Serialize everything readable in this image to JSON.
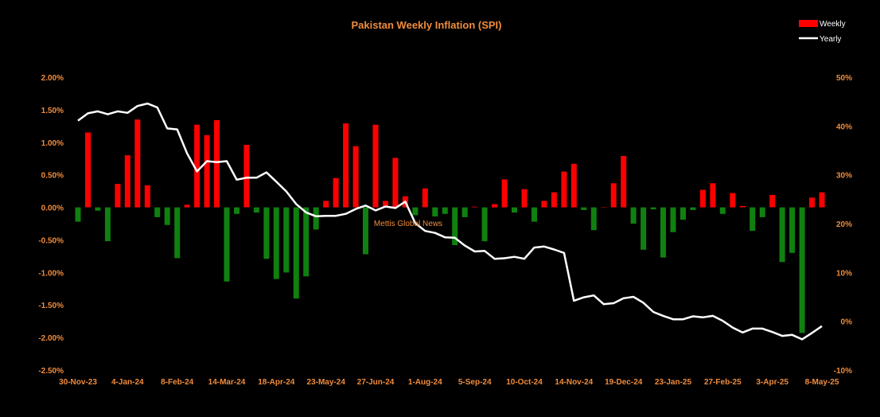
{
  "chart_data": {
    "type": "bar",
    "title": "Pakistan Weekly Inflation (SPI)",
    "watermark": "Mettis Global News",
    "legend_position": "top-right",
    "grid": false,
    "colors": {
      "positive": "#ff0000",
      "negative": "#108010",
      "line": "#ffffff",
      "text": "#f08c3c",
      "background": "#000000"
    },
    "x_tick_labels": [
      "30-Nov-23",
      "4-Jan-24",
      "8-Feb-24",
      "14-Mar-24",
      "18-Apr-24",
      "23-May-24",
      "27-Jun-24",
      "1-Aug-24",
      "5-Sep-24",
      "10-Oct-24",
      "14-Nov-24",
      "19-Dec-24",
      "23-Jan-25",
      "27-Feb-25",
      "3-Apr-25",
      "8-May-25"
    ],
    "y_left_ticks": [
      "2.00%",
      "1.50%",
      "1.00%",
      "0.50%",
      "0.00%",
      "-0.50%",
      "-1.00%",
      "-1.50%",
      "-2.00%",
      "-2.50%"
    ],
    "y_right_ticks": [
      "50%",
      "40%",
      "30%",
      "20%",
      "10%",
      "0%",
      "-10%"
    ],
    "ylim_left": [
      -2.5,
      2.0
    ],
    "ylim_right": [
      -10,
      50
    ],
    "series": [
      {
        "name": "Weekly",
        "type": "bar",
        "axis": "left",
        "values": [
          -0.22,
          1.15,
          -0.05,
          -0.52,
          0.36,
          0.8,
          1.35,
          0.34,
          -0.15,
          -0.27,
          -0.78,
          0.04,
          1.27,
          1.11,
          1.34,
          -1.14,
          -0.1,
          0.96,
          -0.08,
          -0.79,
          -1.1,
          -1.0,
          -1.4,
          -1.06,
          -0.34,
          0.1,
          0.45,
          1.29,
          0.94,
          -0.72,
          1.27,
          0.1,
          0.76,
          0.17,
          -0.12,
          0.29,
          -0.14,
          -0.1,
          -0.58,
          -0.15,
          0.01,
          -0.52,
          0.05,
          0.43,
          -0.08,
          0.28,
          -0.22,
          0.1,
          0.23,
          0.55,
          0.67,
          -0.04,
          -0.35,
          0.0,
          0.37,
          0.79,
          -0.25,
          -0.65,
          -0.03,
          -0.77,
          -0.38,
          -0.19,
          -0.04,
          0.27,
          0.37,
          -0.1,
          0.22,
          0.02,
          -0.36,
          -0.15,
          0.19,
          -0.84,
          -0.7,
          -1.93,
          0.15,
          0.23
        ]
      },
      {
        "name": "Yearly",
        "type": "line",
        "axis": "right",
        "values": [
          41.1,
          42.6,
          43.0,
          42.4,
          43.0,
          42.7,
          44.1,
          44.6,
          43.8,
          39.5,
          39.3,
          34.4,
          30.7,
          32.8,
          32.6,
          32.8,
          29.0,
          29.4,
          29.4,
          30.5,
          28.6,
          26.6,
          24.0,
          22.3,
          21.5,
          21.6,
          21.6,
          22.0,
          23.0,
          23.7,
          22.7,
          23.5,
          23.2,
          24.5,
          20.1,
          18.5,
          18.1,
          17.2,
          17.1,
          15.5,
          14.3,
          14.4,
          12.8,
          12.9,
          13.2,
          12.8,
          15.1,
          15.3,
          14.7,
          14.0,
          4.2,
          4.9,
          5.3,
          3.5,
          3.7,
          4.7,
          5.0,
          3.8,
          1.9,
          1.1,
          0.4,
          0.4,
          1.0,
          0.8,
          1.1,
          0.1,
          -1.3,
          -2.3,
          -1.5,
          -1.5,
          -2.2,
          -3.0,
          -2.8,
          -3.7,
          -2.4,
          -1.0
        ]
      }
    ]
  }
}
